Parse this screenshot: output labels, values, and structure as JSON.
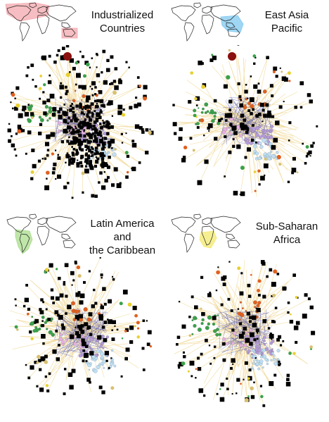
{
  "panels": [
    {
      "title": "Industrialized\nCountries",
      "highlight_region": "industrialized",
      "highlight_color": "#f3a8ae",
      "dominant_node_color": "#000000"
    },
    {
      "title": "East Asia\nPacific",
      "highlight_region": "east-asia-pacific",
      "highlight_color": "#7fc8ef",
      "dominant_node_color": "#000000"
    },
    {
      "title": "Latin America\nand\nthe Caribbean",
      "highlight_region": "latin-america",
      "highlight_color": "#a9dc8c",
      "dominant_node_color": "#000000"
    },
    {
      "title": "Sub-Saharan\nAfrica",
      "highlight_region": "sub-saharan-africa",
      "highlight_color": "#f3ea6e",
      "dominant_node_color": "#000000"
    }
  ],
  "colors": {
    "edge": "#f2dca0",
    "core_edge": "#5a5aa8",
    "lavender": "#b59bd8",
    "light_blue": "#bfe0f5",
    "green": "#3aa14a",
    "orange": "#e06020",
    "dark_red": "#8b1010",
    "pink": "#e8b0e0",
    "yellow": "#e8d030"
  }
}
